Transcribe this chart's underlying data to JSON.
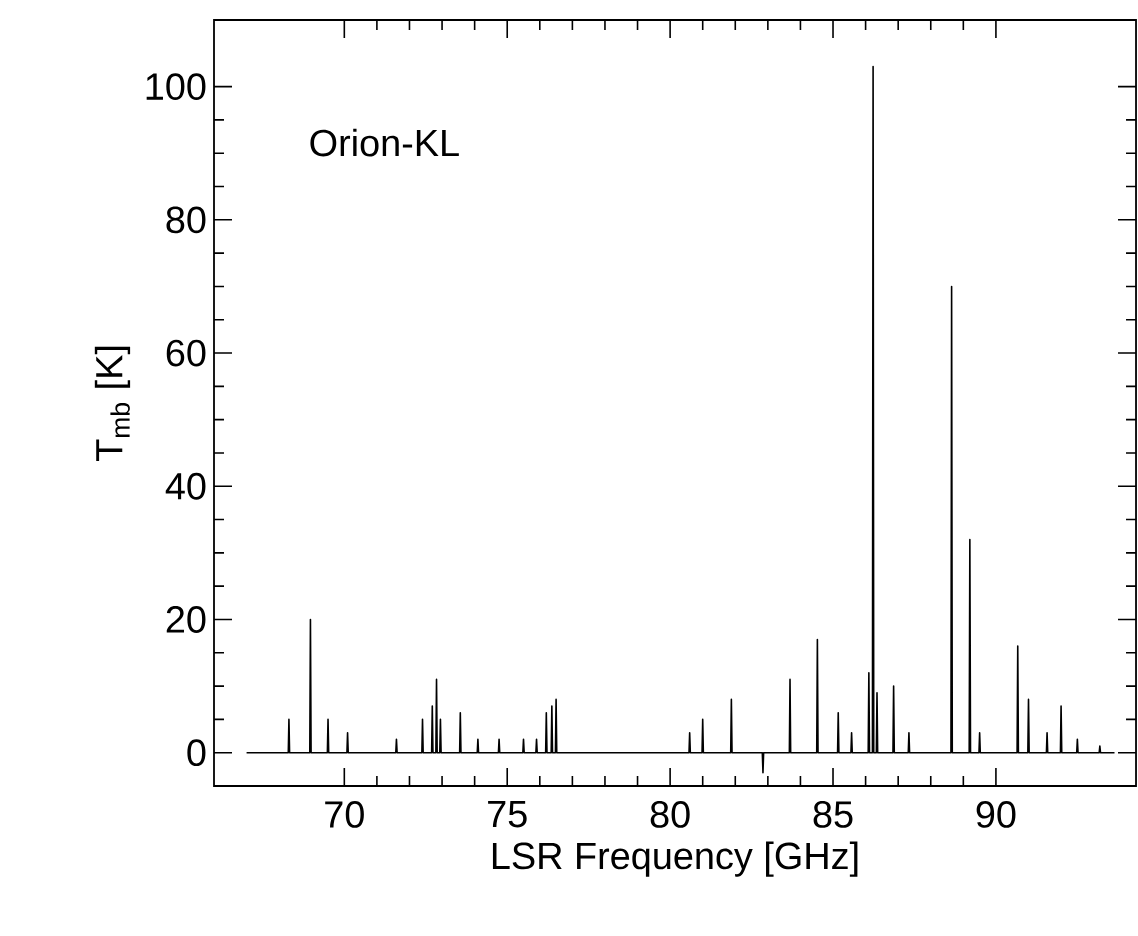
{
  "chart_data": {
    "type": "line",
    "xlabel": "LSR Frequency [GHz]",
    "ylabel": "T$_{mb}$ [K]",
    "annotations": [
      "Orion-KL"
    ],
    "xlim": [
      66,
      94.3
    ],
    "ylim": [
      -5,
      110
    ],
    "xticks": [
      70,
      75,
      80,
      85,
      90
    ],
    "yticks": [
      0,
      20,
      40,
      60,
      80,
      100
    ],
    "series": [
      {
        "color": "#000000",
        "x": [
          67.0,
          68.28,
          68.3,
          68.32,
          68.94,
          68.96,
          68.98,
          69.48,
          69.5,
          69.52,
          70.08,
          70.1,
          70.12,
          71.58,
          71.6,
          71.62,
          72.38,
          72.4,
          72.42,
          72.68,
          72.7,
          72.72,
          72.81,
          72.83,
          72.85,
          72.93,
          72.95,
          72.97,
          73.54,
          73.56,
          73.58,
          74.08,
          74.1,
          74.12,
          74.73,
          74.75,
          74.77,
          75.48,
          75.5,
          75.52,
          75.88,
          75.9,
          75.92,
          76.18,
          76.2,
          76.22,
          76.35,
          76.37,
          76.39,
          76.48,
          76.5,
          76.52,
          80.58,
          80.6,
          80.62,
          80.98,
          81.0,
          81.02,
          81.86,
          81.88,
          81.9,
          82.83,
          82.85,
          82.87,
          83.66,
          83.68,
          83.7,
          84.5,
          84.52,
          84.54,
          85.14,
          85.16,
          85.18,
          85.55,
          85.57,
          85.59,
          86.08,
          86.1,
          86.12,
          86.21,
          86.23,
          86.25,
          86.33,
          86.35,
          86.37,
          86.84,
          86.86,
          86.88,
          87.31,
          87.33,
          87.35,
          88.62,
          88.64,
          88.66,
          89.18,
          89.2,
          89.22,
          89.48,
          89.5,
          89.52,
          90.65,
          90.67,
          90.69,
          90.98,
          91.0,
          91.02,
          91.55,
          91.57,
          91.59,
          91.98,
          92.0,
          92.02,
          92.48,
          92.5,
          92.52,
          93.17,
          93.19,
          93.21,
          93.64
        ],
        "values": [
          0,
          0,
          5,
          0,
          0,
          20,
          0,
          0,
          5,
          0,
          0,
          3,
          0,
          0,
          2,
          0,
          0,
          5,
          0,
          0,
          7,
          0,
          0,
          11,
          0,
          0,
          5,
          0,
          0,
          6,
          0,
          0,
          2,
          0,
          0,
          2,
          0,
          0,
          2,
          0,
          0,
          2,
          0,
          0,
          6,
          0,
          0,
          7,
          0,
          0,
          8,
          0,
          0,
          3,
          0,
          0,
          5,
          0,
          0,
          8,
          0,
          0,
          -3,
          0,
          0,
          11,
          0,
          0,
          17,
          0,
          0,
          6,
          0,
          0,
          3,
          0,
          0,
          12,
          0,
          0,
          103,
          0,
          0,
          9,
          0,
          0,
          10,
          0,
          0,
          3,
          0,
          0,
          70,
          0,
          0,
          32,
          0,
          0,
          3,
          0,
          0,
          16,
          0,
          0,
          8,
          0,
          0,
          3,
          0,
          0,
          7,
          0,
          0,
          2,
          0,
          0,
          1,
          0,
          0
        ]
      }
    ]
  }
}
